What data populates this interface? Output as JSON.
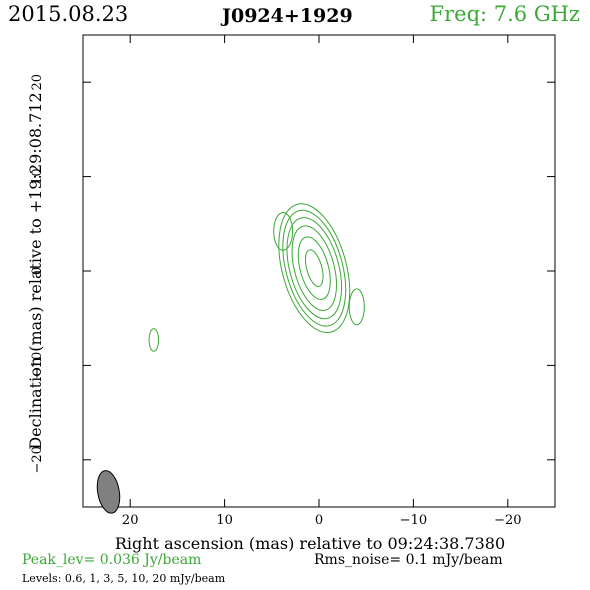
{
  "header": {
    "date": "2015.08.23",
    "source": "J0924+1929",
    "freq": "Freq: 7.6 GHz"
  },
  "footer": {
    "peak": "Peak_lev=  0.036 Jy/beam",
    "rms": "Rms_noise=   0.1 mJy/beam",
    "levels": "Levels: 0.6,    1,    3,    5,   10,   20  mJy/beam"
  },
  "colors": {
    "contour": "#3aa935",
    "beam": "#808080",
    "axis": "#000000"
  },
  "chart_data": {
    "type": "contour",
    "title": "J0924+1929",
    "xlabel": "Right ascension (mas) relative to 09:24:38.7380",
    "ylabel": "Declination (mas) relative to +19:29:08.712",
    "xlim": [
      25,
      -25
    ],
    "ylim": [
      -25,
      25
    ],
    "xticks": [
      20,
      10,
      0,
      -10,
      -20
    ],
    "xtick_labels": [
      "20",
      "10",
      "0",
      "−10",
      "−20"
    ],
    "yticks": [
      20,
      10,
      0,
      -10,
      -20
    ],
    "ytick_labels": [
      "20",
      "10",
      "0",
      "−10",
      "−20"
    ],
    "contour_levels_mJy": [
      0.6,
      1,
      3,
      5,
      10,
      20
    ],
    "peak_Jy_per_beam": 0.036,
    "rms_mJy_per_beam": 0.1,
    "components": [
      {
        "name": "core",
        "x": 0.5,
        "y": 0.3,
        "rings": [
          [
            3.4,
            7.0
          ],
          [
            3.0,
            6.3
          ],
          [
            2.6,
            5.5
          ],
          [
            2.1,
            4.6
          ],
          [
            1.5,
            3.4
          ],
          [
            0.8,
            2.0
          ]
        ],
        "angle": -15
      },
      {
        "name": "blob-north",
        "x": 3.8,
        "y": 4.2,
        "rings": [
          [
            1.0,
            2.0
          ]
        ],
        "angle": 0
      },
      {
        "name": "blob-east",
        "x": 17.5,
        "y": -7.3,
        "rings": [
          [
            0.5,
            1.2
          ]
        ],
        "angle": 0
      },
      {
        "name": "blob-west",
        "x": -4.0,
        "y": -3.8,
        "rings": [
          [
            0.8,
            1.9
          ]
        ],
        "angle": 0
      }
    ],
    "beam": {
      "x": 22.3,
      "y": -23.4,
      "major": 2.4,
      "minor": 1.2,
      "angle": -10
    }
  }
}
